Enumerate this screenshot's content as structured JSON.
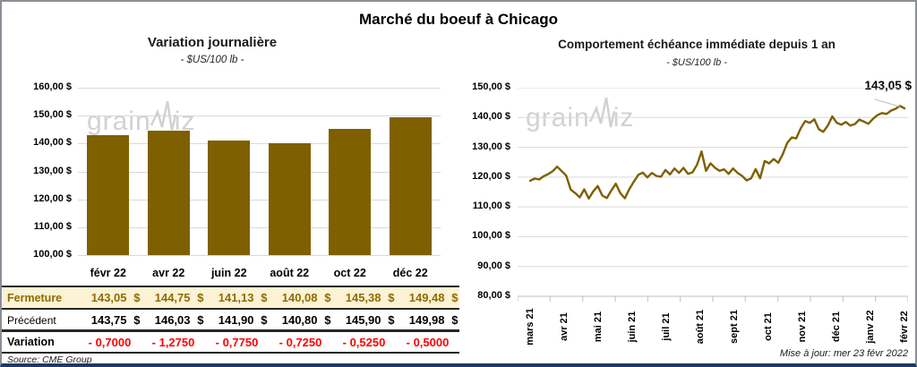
{
  "page": {
    "title": "Marché du boeuf à Chicago",
    "source": "Source: CME Group",
    "updated": "Mise à jour: mer 23 févr 2022",
    "watermark_pre": "grain",
    "watermark_post": "iz"
  },
  "colors": {
    "gold": "#7E6000",
    "grid": "#D9D9D9",
    "axis": "#BFBFBF",
    "rule": "#262626",
    "negative": "#FF0000",
    "table_highlight_bg": "#FCF2D4",
    "table_highlight_text": "#8F6B00",
    "watermark": "#D2D2D2"
  },
  "chart_data": [
    {
      "type": "bar",
      "title": "Variation journalière",
      "subtitle": "- $US/100 lb -",
      "categories": [
        "févr 22",
        "avr 22",
        "juin 22",
        "août 22",
        "oct 22",
        "déc 22"
      ],
      "values": [
        143.05,
        144.75,
        141.13,
        140.08,
        145.38,
        149.48
      ],
      "ylim": [
        100,
        160
      ],
      "ytick_labels": [
        "160,00 $",
        "150,00 $",
        "140,00 $",
        "130,00 $",
        "120,00 $",
        "110,00 $",
        "100,00 $"
      ],
      "grid": true,
      "legend": false
    },
    {
      "type": "line",
      "title": "Comportement échéance immédiate depuis 1 an",
      "subtitle": "- $US/100 lb -",
      "x_tick_labels": [
        "mars 21",
        "avr 21",
        "mai 21",
        "juin 21",
        "juil 21",
        "août 21",
        "sept 21",
        "oct 21",
        "nov 21",
        "déc 21",
        "janv 22",
        "févr 22"
      ],
      "values": [
        118.8,
        119.5,
        119.2,
        120.3,
        121.0,
        122.0,
        123.5,
        122.0,
        120.5,
        115.8,
        114.6,
        113.2,
        115.9,
        112.8,
        115.2,
        117.0,
        113.8,
        113.0,
        115.5,
        117.8,
        114.6,
        112.9,
        116.0,
        118.5,
        120.8,
        121.5,
        119.9,
        121.4,
        120.4,
        120.1,
        122.4,
        120.9,
        122.9,
        121.4,
        123.1,
        121.1,
        121.6,
        124.1,
        128.6,
        122.1,
        124.6,
        123.1,
        122.1,
        122.6,
        121.1,
        122.9,
        121.4,
        120.4,
        118.9,
        119.6,
        122.7,
        119.6,
        125.4,
        124.6,
        126.1,
        124.8,
        127.6,
        131.5,
        133.3,
        133.0,
        136.4,
        138.8,
        138.2,
        139.4,
        136.1,
        135.2,
        137.3,
        140.4,
        138.2,
        137.6,
        138.5,
        137.3,
        137.8,
        139.3,
        138.6,
        137.9,
        139.5,
        140.8,
        141.5,
        141.2,
        142.3,
        142.9,
        143.9,
        143.05
      ],
      "ylim": [
        80,
        150
      ],
      "ytick_labels": [
        "150,00 $",
        "140,00 $",
        "130,00 $",
        "120,00 $",
        "110,00 $",
        "100,00 $",
        "90,00 $",
        "80,00 $"
      ],
      "last_value_label": "143,05 $",
      "grid": true,
      "legend": false
    }
  ],
  "table": {
    "column_headers": [
      "févr 22",
      "avr 22",
      "juin 22",
      "août 22",
      "oct 22",
      "déc 22"
    ],
    "rows": [
      {
        "label": "Fermeture",
        "values": [
          "143,05",
          "144,75",
          "141,13",
          "140,08",
          "145,38",
          "149,48"
        ],
        "unit": "$",
        "style": "highlight"
      },
      {
        "label": "Précédent",
        "values": [
          "143,75",
          "146,03",
          "141,90",
          "140,80",
          "145,90",
          "149,98"
        ],
        "unit": "$",
        "style": "normal"
      },
      {
        "label": "Variation",
        "values": [
          "- 0,7000",
          "- 1,2750",
          "- 0,7750",
          "- 0,7250",
          "- 0,5250",
          "- 0,5000"
        ],
        "unit": "",
        "style": "negative"
      }
    ]
  }
}
